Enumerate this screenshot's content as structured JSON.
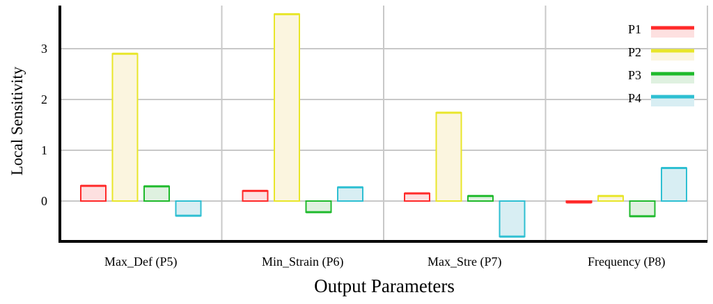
{
  "chart_data": {
    "type": "bar",
    "xlabel": "Output Parameters",
    "ylabel": "Local Sensitivity",
    "categories": [
      "Max_Def (P5)",
      "Min_Strain (P6)",
      "Max_Stre (P7)",
      "Frequency (P8)"
    ],
    "series": [
      {
        "name": "P1",
        "values": [
          0.3,
          0.2,
          0.15,
          -0.02
        ],
        "color": "#ff2a2a",
        "fill": "#fde0e0"
      },
      {
        "name": "P2",
        "values": [
          2.9,
          3.68,
          1.74,
          0.1
        ],
        "color": "#e8e62a",
        "fill": "#fbf5df"
      },
      {
        "name": "P3",
        "values": [
          0.29,
          -0.22,
          0.1,
          -0.3
        ],
        "color": "#1fba2c",
        "fill": "#dff1e0"
      },
      {
        "name": "P4",
        "values": [
          -0.29,
          0.27,
          -0.7,
          0.65
        ],
        "color": "#2ebfd2",
        "fill": "#d8eef3"
      }
    ],
    "yticks": [
      0,
      1,
      2,
      3
    ],
    "ylim": [
      -0.8,
      3.9
    ],
    "grid": true,
    "legend": "top-right"
  }
}
